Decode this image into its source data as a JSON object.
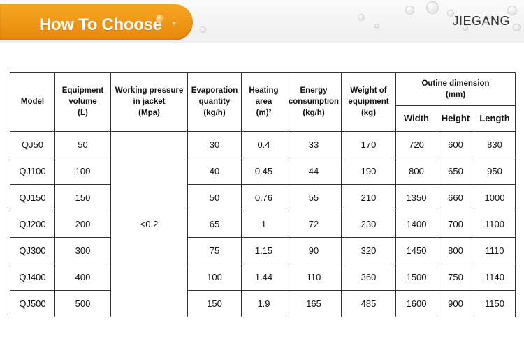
{
  "header": {
    "title": "How To Choose",
    "brand": "JIEGANG",
    "accent_color": "#f29a1a"
  },
  "table": {
    "headers": {
      "model": "Model",
      "equipment_volume": [
        "Equipment",
        "volume",
        "(L)"
      ],
      "working_pressure": [
        "Working pressure",
        "in jacket",
        "(Mpa)"
      ],
      "evaporation": [
        "Evaporation",
        "quantity",
        "(kg/h)"
      ],
      "heating_area": [
        "Heating",
        "area",
        "(m)²"
      ],
      "energy": [
        "Energy",
        "consumption",
        "(kg/h)"
      ],
      "weight": [
        "Weight of",
        "equipment",
        "(kg)"
      ],
      "dimension": [
        "Outine dimension",
        "(mm)"
      ],
      "width": "Width",
      "height": "Height",
      "length": "Length"
    },
    "shared_pressure": "<0.2",
    "rows": [
      {
        "model": "QJ50",
        "volume": "50",
        "evaporation": "30",
        "heating_area": "0.4",
        "energy": "33",
        "weight": "170",
        "width": "720",
        "height": "600",
        "length": "830"
      },
      {
        "model": "QJ100",
        "volume": "100",
        "evaporation": "40",
        "heating_area": "0.45",
        "energy": "44",
        "weight": "190",
        "width": "800",
        "height": "650",
        "length": "950"
      },
      {
        "model": "QJ150",
        "volume": "150",
        "evaporation": "50",
        "heating_area": "0.76",
        "energy": "55",
        "weight": "210",
        "width": "1350",
        "height": "660",
        "length": "1000"
      },
      {
        "model": "QJ200",
        "volume": "200",
        "evaporation": "65",
        "heating_area": "1",
        "energy": "72",
        "weight": "230",
        "width": "1400",
        "height": "700",
        "length": "1100"
      },
      {
        "model": "QJ300",
        "volume": "300",
        "evaporation": "75",
        "heating_area": "1.15",
        "energy": "90",
        "weight": "320",
        "width": "1450",
        "height": "800",
        "length": "1110"
      },
      {
        "model": "QJ400",
        "volume": "400",
        "evaporation": "100",
        "heating_area": "1.44",
        "energy": "110",
        "weight": "360",
        "width": "1500",
        "height": "750",
        "length": "1140"
      },
      {
        "model": "QJ500",
        "volume": "500",
        "evaporation": "150",
        "heating_area": "1.9",
        "energy": "165",
        "weight": "485",
        "width": "1600",
        "height": "900",
        "length": "1150"
      }
    ]
  }
}
